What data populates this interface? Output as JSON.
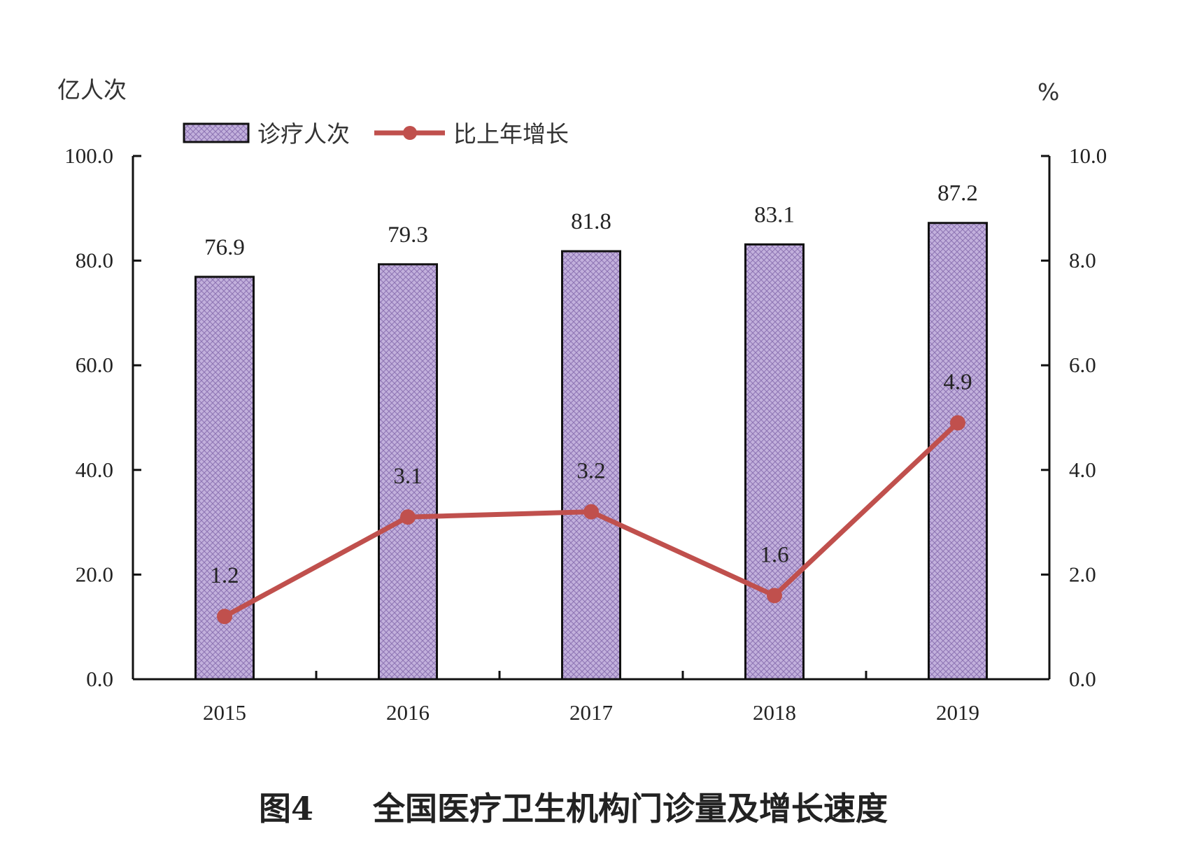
{
  "chart_data": {
    "type": "bar",
    "title": "全国医疗卫生机构门诊量及增长速度",
    "figure_label": "图4",
    "categories": [
      "2015",
      "2016",
      "2017",
      "2018",
      "2019"
    ],
    "y_left": {
      "unit": "亿人次",
      "range": [
        0,
        100
      ],
      "ticks": [
        "0.0",
        "20.0",
        "40.0",
        "60.0",
        "80.0",
        "100.0"
      ]
    },
    "y_right": {
      "unit": "%",
      "range": [
        0,
        10
      ],
      "ticks": [
        "0.0",
        "2.0",
        "4.0",
        "6.0",
        "8.0",
        "10.0"
      ]
    },
    "series": [
      {
        "name": "诊疗人次",
        "type": "bar",
        "axis": "left",
        "values": [
          76.9,
          79.3,
          81.8,
          83.1,
          87.2
        ],
        "labels": [
          "76.9",
          "79.3",
          "81.8",
          "83.1",
          "87.2"
        ],
        "color": "#b9a3d6"
      },
      {
        "name": "比上年增长",
        "type": "line",
        "axis": "right",
        "values": [
          1.2,
          3.1,
          3.2,
          1.6,
          4.9
        ],
        "labels": [
          "1.2",
          "3.1",
          "3.2",
          "1.6",
          "4.9"
        ],
        "color": "#c0504d"
      }
    ],
    "legend": "top-left",
    "grid": false
  }
}
